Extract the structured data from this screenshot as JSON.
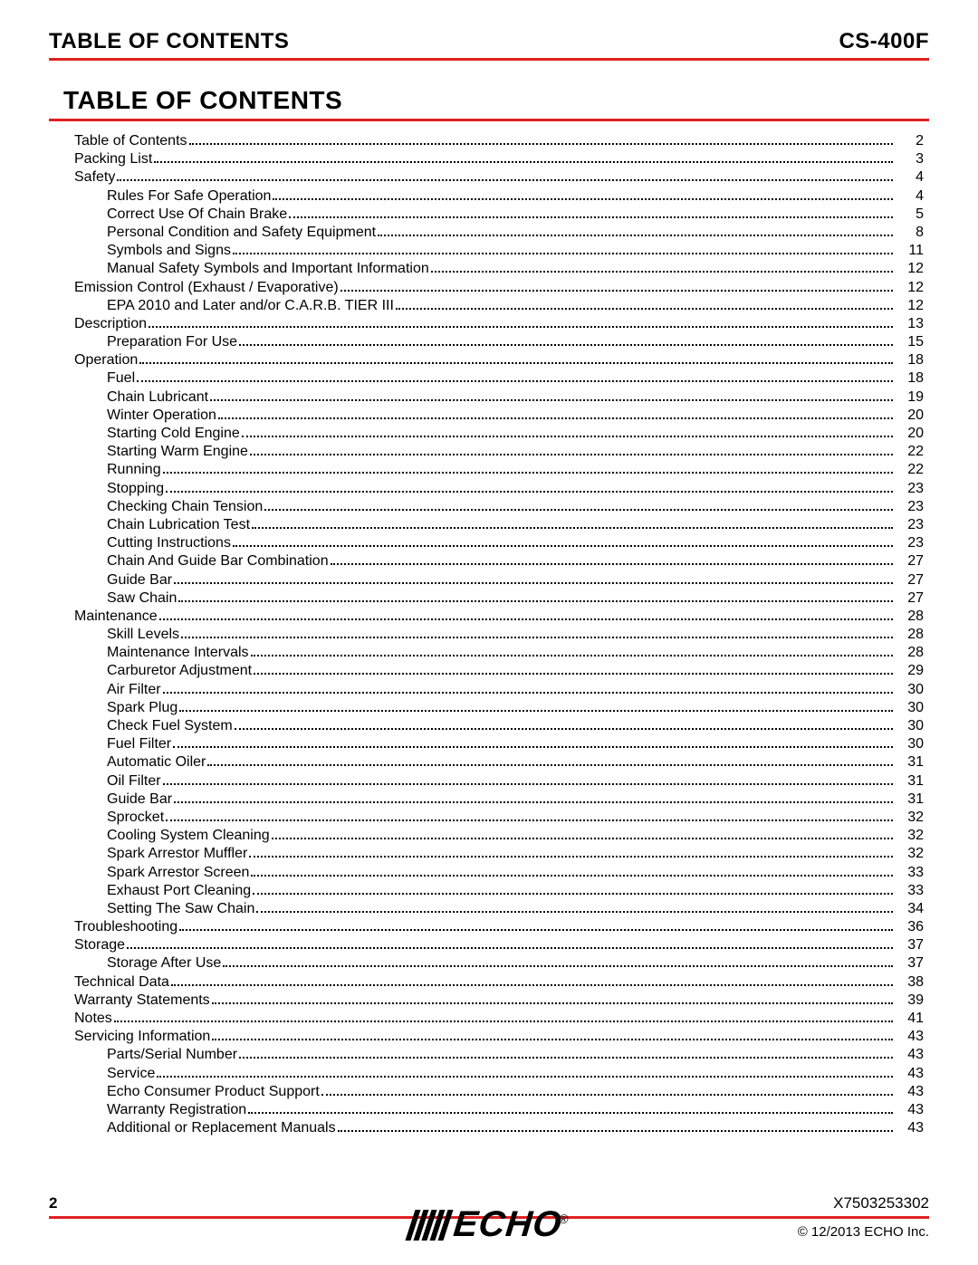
{
  "header": {
    "section_label": "TABLE OF CONTENTS",
    "model": "CS-400F"
  },
  "title": "TABLE OF CONTENTS",
  "accent_color": "#e02020",
  "toc": [
    {
      "label": "Table of Contents",
      "page": "2",
      "level": 0
    },
    {
      "label": "Packing List",
      "page": "3",
      "level": 0
    },
    {
      "label": "Safety",
      "page": "4",
      "level": 0
    },
    {
      "label": "Rules For Safe Operation",
      "page": "4",
      "level": 1
    },
    {
      "label": "Correct Use Of Chain Brake",
      "page": "5",
      "level": 1
    },
    {
      "label": "Personal Condition and Safety Equipment",
      "page": "8",
      "level": 1
    },
    {
      "label": "Symbols and Signs",
      "page": "11",
      "level": 1
    },
    {
      "label": "Manual Safety Symbols and Important Information",
      "page": "12",
      "level": 1
    },
    {
      "label": "Emission Control (Exhaust / Evaporative)",
      "page": "12",
      "level": 0
    },
    {
      "label": "EPA 2010 and Later and/or C.A.R.B. TIER III",
      "page": "12",
      "level": 1
    },
    {
      "label": "Description",
      "page": "13",
      "level": 0
    },
    {
      "label": "Preparation For Use",
      "page": "15",
      "level": 1
    },
    {
      "label": "Operation",
      "page": "18",
      "level": 0
    },
    {
      "label": "Fuel",
      "page": "18",
      "level": 1
    },
    {
      "label": "Chain Lubricant",
      "page": "19",
      "level": 1
    },
    {
      "label": "Winter Operation",
      "page": "20",
      "level": 1
    },
    {
      "label": "Starting Cold Engine",
      "page": "20",
      "level": 1
    },
    {
      "label": "Starting Warm Engine",
      "page": "22",
      "level": 1
    },
    {
      "label": "Running",
      "page": "22",
      "level": 1
    },
    {
      "label": "Stopping",
      "page": "23",
      "level": 1
    },
    {
      "label": "Checking Chain Tension",
      "page": "23",
      "level": 1
    },
    {
      "label": "Chain Lubrication Test",
      "page": "23",
      "level": 1
    },
    {
      "label": "Cutting Instructions",
      "page": "23",
      "level": 1
    },
    {
      "label": "Chain And Guide Bar Combination",
      "page": "27",
      "level": 1
    },
    {
      "label": "Guide Bar",
      "page": "27",
      "level": 1
    },
    {
      "label": "Saw Chain",
      "page": "27",
      "level": 1
    },
    {
      "label": "Maintenance",
      "page": "28",
      "level": 0
    },
    {
      "label": "Skill Levels",
      "page": "28",
      "level": 1
    },
    {
      "label": "Maintenance Intervals",
      "page": "28",
      "level": 1
    },
    {
      "label": "Carburetor Adjustment",
      "page": "29",
      "level": 1
    },
    {
      "label": "Air Filter",
      "page": "30",
      "level": 1
    },
    {
      "label": "Spark Plug",
      "page": "30",
      "level": 1
    },
    {
      "label": "Check Fuel System",
      "page": "30",
      "level": 1
    },
    {
      "label": "Fuel Filter",
      "page": "30",
      "level": 1
    },
    {
      "label": "Automatic Oiler",
      "page": "31",
      "level": 1
    },
    {
      "label": "Oil Filter",
      "page": "31",
      "level": 1
    },
    {
      "label": "Guide Bar",
      "page": "31",
      "level": 1
    },
    {
      "label": "Sprocket",
      "page": "32",
      "level": 1
    },
    {
      "label": "Cooling System Cleaning",
      "page": "32",
      "level": 1
    },
    {
      "label": "Spark Arrestor Muffler",
      "page": "32",
      "level": 1
    },
    {
      "label": "Spark Arrestor Screen",
      "page": "33",
      "level": 1
    },
    {
      "label": "Exhaust Port Cleaning",
      "page": "33",
      "level": 1
    },
    {
      "label": "Setting The Saw Chain",
      "page": "34",
      "level": 1
    },
    {
      "label": "Troubleshooting",
      "page": "36",
      "level": 0
    },
    {
      "label": "Storage",
      "page": "37",
      "level": 0
    },
    {
      "label": "Storage After Use",
      "page": "37",
      "level": 1
    },
    {
      "label": "Technical Data",
      "page": "38",
      "level": 0
    },
    {
      "label": "Warranty Statements",
      "page": "39",
      "level": 0
    },
    {
      "label": "Notes",
      "page": "41",
      "level": 0
    },
    {
      "label": "Servicing Information",
      "page": "43",
      "level": 0
    },
    {
      "label": "Parts/Serial Number",
      "page": "43",
      "level": 1
    },
    {
      "label": "Service",
      "page": "43",
      "level": 1
    },
    {
      "label": "Echo Consumer Product Support",
      "page": "43",
      "level": 1
    },
    {
      "label": "Warranty Registration",
      "page": "43",
      "level": 1
    },
    {
      "label": "Additional or Replacement Manuals",
      "page": "43",
      "level": 1
    }
  ],
  "footer": {
    "page_number": "2",
    "doc_number": "X7503253302",
    "copyright": "© 12/2013 ECHO Inc.",
    "logo_text": "ECHO"
  }
}
